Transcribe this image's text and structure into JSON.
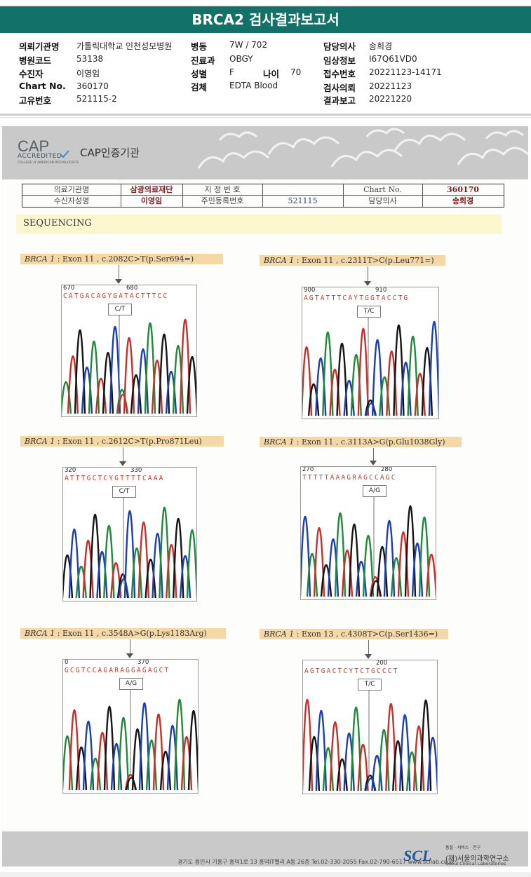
{
  "report": {
    "title": "BRCA2 검사결과보고서",
    "fields": [
      {
        "label": "의뢰기관명",
        "value": "가톨릭대학교 인천성모병원"
      },
      {
        "label": "병원코드",
        "value": "53138"
      },
      {
        "label": "수진자",
        "value": "이영임"
      },
      {
        "label": "Chart No.",
        "value": "360170"
      },
      {
        "label": "고유번호",
        "value": "521115-2"
      },
      {
        "label": "병동",
        "value": "7W / 702"
      },
      {
        "label": "진료과",
        "value": "OBGY"
      },
      {
        "label": "성별",
        "value": "F"
      },
      {
        "label": "나이",
        "value": "70"
      },
      {
        "label": "검체",
        "value": "EDTA Blood"
      },
      {
        "label": "담당의사",
        "value": "송희경"
      },
      {
        "label": "임상정보",
        "value": "I67Q61VD0"
      },
      {
        "label": "접수번호",
        "value": "20221123-14171"
      },
      {
        "label": "검사의뢰",
        "value": "20221123"
      },
      {
        "label": "결과보고",
        "value": "20221220"
      }
    ]
  },
  "cap": {
    "logo": "CAP",
    "accredited": "ACCREDITED",
    "college": "COLLEGE of AMERICAN PATHOLOGISTS",
    "name": "CAP인증기관"
  },
  "info_table": {
    "labels": [
      "의료기관명",
      "지 정 번 호",
      "Chart No.",
      "수신자성명",
      "주민등록번호",
      "담당의사"
    ],
    "values": {
      "inst": "삼광의료재단",
      "designation": "",
      "chart": "360170",
      "name": "이영임",
      "rrn": "521115",
      "doctor": "송희경"
    }
  },
  "section_title": "SEQUENCING",
  "panels": [
    {
      "gene": "BRCA 1",
      "desc": "Exon 11 , c.2082C>T(p.Ser694=)",
      "num1": "670",
      "num2": "680",
      "seq": "CATGACAGYGATACTTTCC",
      "call": "C/T"
    },
    {
      "gene": "BRCA 1",
      "desc": "Exon 11 , c.2311T>C(p.Leu771=)",
      "num1": "900",
      "num2": "910",
      "seq": "AGTATTTCAYTGGTACCTG",
      "call": "T/C"
    },
    {
      "gene": "BRCA 1",
      "desc": "Exon 11 , c.2612C>T(p.Pro871Leu)",
      "num1": "320",
      "num2": "330",
      "seq": "ATTTGCTCYGTTTTCAAA",
      "call": "C/T"
    },
    {
      "gene": "BRCA 1",
      "desc": "Exon 11 , c.3113A>G(p.Glu1038Gly)",
      "num1": "270",
      "num2": "280",
      "seq": "TTTTTAAAGRAGCCAGC",
      "call": "A/G"
    },
    {
      "gene": "BRCA 1",
      "desc": "Exon 11 , c.3548A>G(p.Lys1183Arg)",
      "num1": "0",
      "num2": "370",
      "seq": "GCGTCCAGARAGGAGAGCT",
      "call": "A/G"
    },
    {
      "gene": "BRCA 1",
      "desc": "Exon 13 , c.4308T>C(p.Ser1436=)",
      "num1": "",
      "num2": "200",
      "seq": "AGTGACTCYTCTGCCCT",
      "call": "T/C"
    }
  ],
  "footer": {
    "address": "경기도 용인시 기흥구 흥덕1로 13 흥덕IT밸리 A동 26층  Tel.02-330-2055  Fax.02-790-6517  www.scllab.co.kr",
    "logo": "SCL",
    "slogan": "품질 · 서비스 · 연구",
    "name_kr": "(재)서울의과학연구소",
    "name_en": "Seoul Clinical Laboratories"
  }
}
